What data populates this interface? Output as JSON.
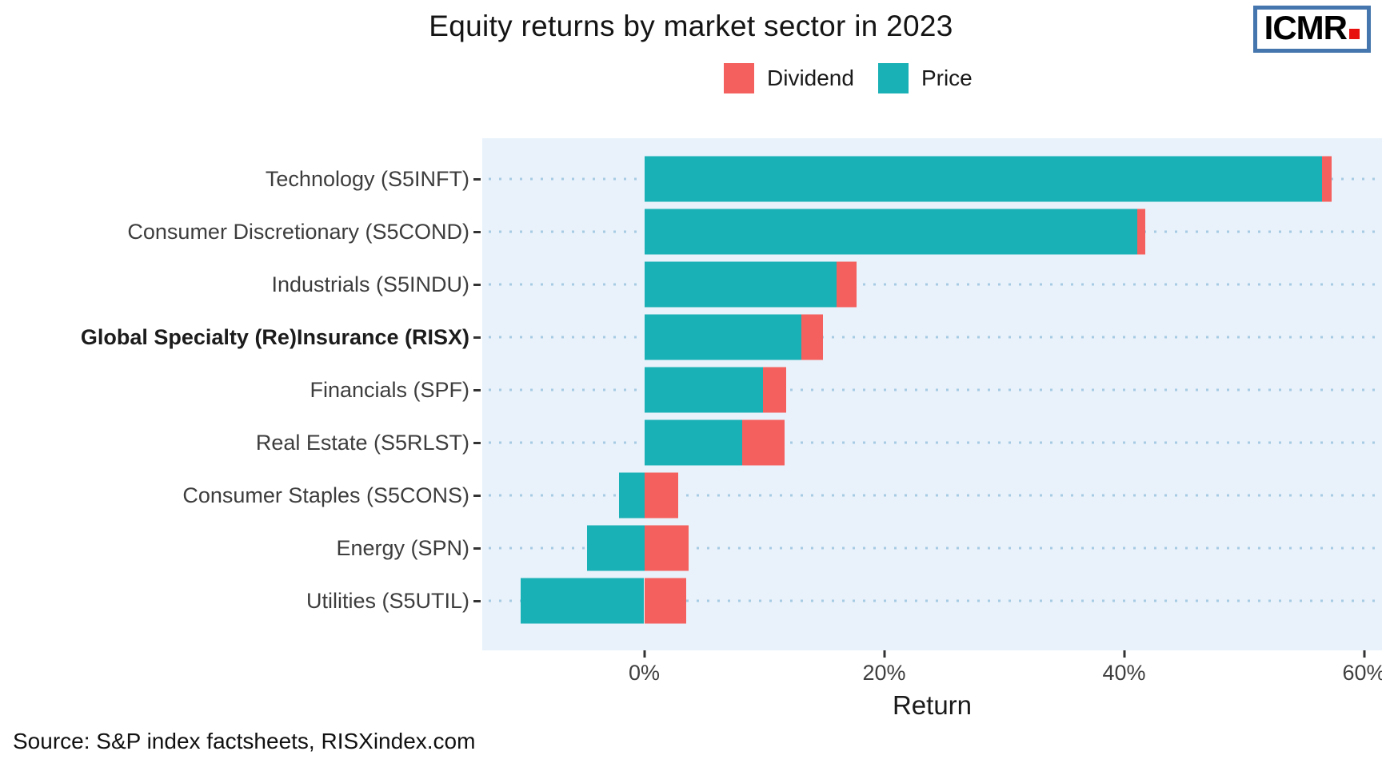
{
  "logo": {
    "text": "ICMR"
  },
  "source": "Source: S&P index factsheets, RISXindex.com",
  "chart_data": {
    "type": "bar",
    "orientation": "horizontal",
    "stacked": true,
    "title": "Equity returns by market sector in 2023",
    "xlabel": "Return",
    "categories": [
      "Technology (S5INFT)",
      "Consumer Discretionary (S5COND)",
      "Industrials (S5INDU)",
      "Global Specialty (Re)Insurance (RISX)",
      "Financials (SPF)",
      "Real Estate (S5RLST)",
      "Consumer Staples (S5CONS)",
      "Energy (SPN)",
      "Utilities (S5UTIL)"
    ],
    "series": [
      {
        "name": "Dividend",
        "color": "#f4605d",
        "values": [
          0.8,
          0.7,
          1.7,
          1.8,
          1.9,
          3.5,
          2.8,
          3.7,
          3.5
        ]
      },
      {
        "name": "Price",
        "color": "#1ab1b6",
        "values": [
          56.5,
          41.1,
          16.0,
          13.1,
          9.9,
          8.2,
          -2.1,
          -4.8,
          -10.3
        ]
      }
    ],
    "stacking_rule": "price drawn from 0 (leftward when negative); positive dividend stacked rightward starting at max(price, 0)",
    "emphasized_category": "Global Specialty (Re)Insurance (RISX)",
    "x_ticks": [
      {
        "value": 0,
        "label": "0%"
      },
      {
        "value": 20,
        "label": "20%"
      },
      {
        "value": 40,
        "label": "40%"
      },
      {
        "value": 60,
        "label": "60%"
      }
    ],
    "xlim": [
      -13.5,
      61.5
    ],
    "legend_position": "top",
    "grid": "dotted-horizontal",
    "panel_background": "#e9f2fb",
    "grid_dot_color": "#a6cbe3"
  }
}
